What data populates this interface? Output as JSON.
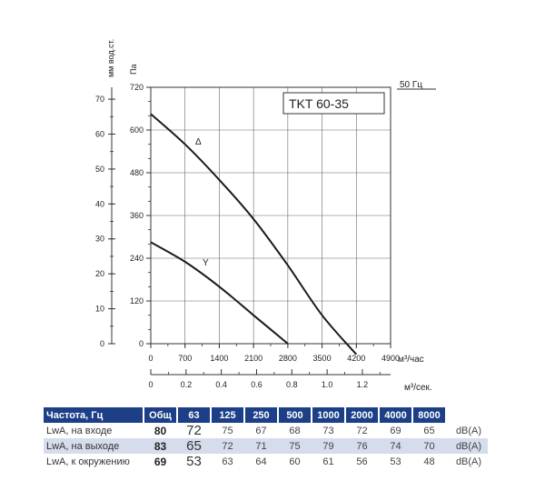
{
  "chart_data": {
    "type": "line",
    "title": "TKT 60-35",
    "frequency_label": "50 Гц",
    "y_left_label": "мм вод.ст.",
    "y_pa_label": "Па",
    "x_label": "м³/час",
    "x2_label": "м³/сек.",
    "x_ticks": [
      "0",
      "700",
      "1400",
      "2100",
      "2800",
      "3500",
      "4200",
      "4900"
    ],
    "x_range": [
      0,
      4900
    ],
    "x2_ticks": [
      "0",
      "0.2",
      "0.4",
      "0.6",
      "0.8",
      "1.0",
      "1.2"
    ],
    "x2_range": [
      0,
      1.36
    ],
    "y_pa_ticks": [
      "0",
      "120",
      "240",
      "360",
      "480",
      "600",
      "720"
    ],
    "y_pa_range": [
      0,
      720
    ],
    "y_mm_ticks": [
      "0",
      "10",
      "20",
      "30",
      "40",
      "50",
      "60",
      "70"
    ],
    "y_mm_range": [
      0,
      73.4
    ],
    "series": [
      {
        "name": "Δ",
        "x": [
          0,
          700,
          1400,
          2100,
          2800,
          3500,
          4200
        ],
        "y": [
          645,
          560,
          460,
          350,
          220,
          80,
          -30
        ]
      },
      {
        "name": "Y",
        "x": [
          0,
          700,
          1400,
          2100,
          2800
        ],
        "y": [
          285,
          230,
          160,
          80,
          0
        ]
      }
    ]
  },
  "table": {
    "headers": [
      "Частота, Гц",
      "Общ",
      "63",
      "125",
      "250",
      "500",
      "1000",
      "2000",
      "4000",
      "8000"
    ],
    "rows": [
      {
        "label": "LwA, на входе",
        "total": "80",
        "values": [
          "72",
          "75",
          "67",
          "68",
          "73",
          "72",
          "69",
          "65"
        ],
        "unit": "dB(A)"
      },
      {
        "label": "LwA, на выходе",
        "total": "83",
        "values": [
          "65",
          "72",
          "71",
          "75",
          "79",
          "76",
          "74",
          "70"
        ],
        "unit": "dB(A)"
      },
      {
        "label": "LwA, к окружению",
        "total": "69",
        "values": [
          "53",
          "63",
          "64",
          "60",
          "61",
          "56",
          "53",
          "48"
        ],
        "unit": "dB(A)"
      }
    ]
  },
  "colors": {
    "header_bg": "#1c3f87",
    "row_shade": "#d5dcec"
  }
}
